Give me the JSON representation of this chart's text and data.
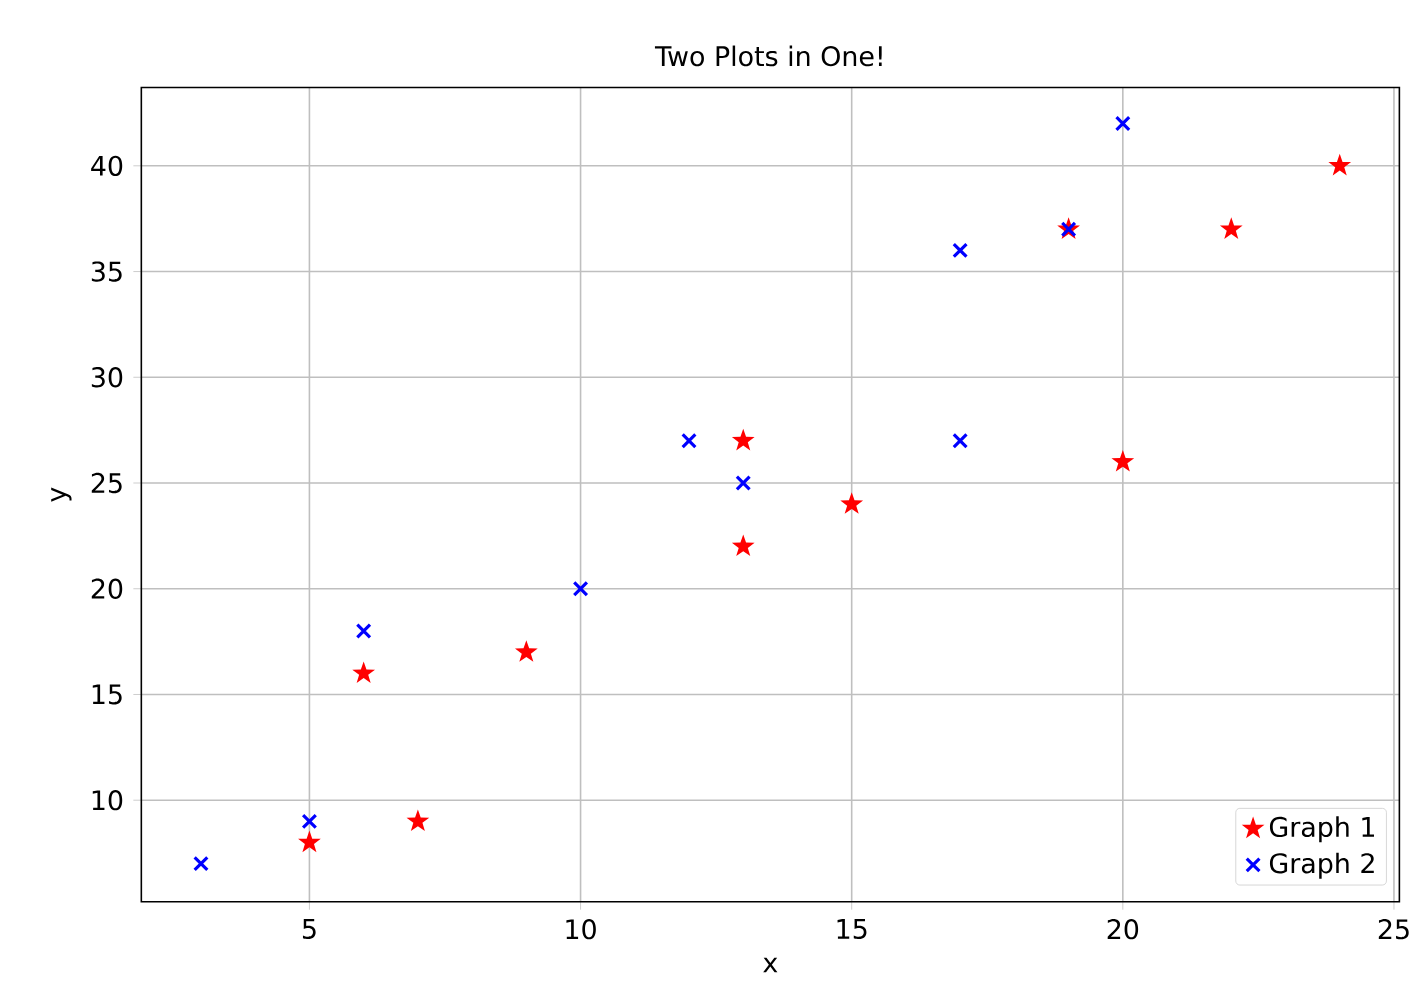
{
  "chart_data": {
    "type": "scatter",
    "title": "Two Plots in One!",
    "xlabel": "x",
    "ylabel": "y",
    "series": [
      {
        "name": "Graph 1",
        "color": "#ff0000",
        "marker": "star",
        "x": [
          5,
          6,
          7,
          9,
          13,
          13,
          15,
          19,
          20,
          22,
          24
        ],
        "values": [
          8,
          16,
          9,
          17,
          27,
          22,
          24,
          37,
          26,
          37,
          40
        ]
      },
      {
        "name": "Graph 2",
        "color": "#0000ff",
        "marker": "cross",
        "x": [
          3,
          5,
          6,
          10,
          12,
          13,
          17,
          17,
          19,
          20
        ],
        "values": [
          7,
          9,
          18,
          20,
          27,
          25,
          36,
          27,
          37,
          42
        ]
      }
    ],
    "xlim": [
      1.9,
      25.1
    ],
    "ylim": [
      5.2,
      43.7
    ],
    "xticks": [
      5,
      10,
      15,
      20,
      25
    ],
    "yticks": [
      10,
      15,
      20,
      25,
      30,
      35,
      40
    ],
    "grid": true,
    "legend": "bottom right"
  }
}
